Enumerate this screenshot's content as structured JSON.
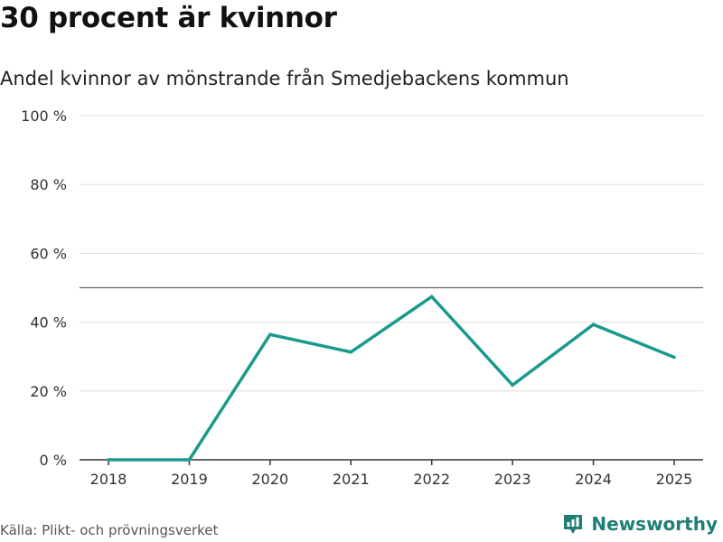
{
  "header": {
    "title": "30 procent är kvinnor",
    "subtitle": "Andel kvinnor av mönstrande från Smedjebackens kommun"
  },
  "footer": {
    "source": "Källa: Plikt- och prövningsverket",
    "brand": "Newsworthy",
    "brand_icon": "bar-chart-icon"
  },
  "colors": {
    "line": "#1a9a8c",
    "grid": "#dddddd",
    "reference": "#666666",
    "axis": "#333333",
    "brand": "#1f7f75"
  },
  "chart_data": {
    "type": "line",
    "title": "30 procent är kvinnor",
    "subtitle": "Andel kvinnor av mönstrande från Smedjebackens kommun",
    "xlabel": "",
    "ylabel": "",
    "x": [
      "2018",
      "2019",
      "2020",
      "2021",
      "2022",
      "2023",
      "2024",
      "2025"
    ],
    "series": [
      {
        "name": "Andel kvinnor",
        "values": [
          0,
          0,
          36.4,
          31.3,
          47.4,
          21.7,
          39.3,
          29.8
        ]
      }
    ],
    "ylim": [
      0,
      100
    ],
    "yticks": [
      0,
      20,
      40,
      60,
      80,
      100
    ],
    "ytick_labels": [
      "0 %",
      "20 %",
      "40 %",
      "60 %",
      "80 %",
      "100 %"
    ],
    "reference_line": 50,
    "grid": true
  }
}
